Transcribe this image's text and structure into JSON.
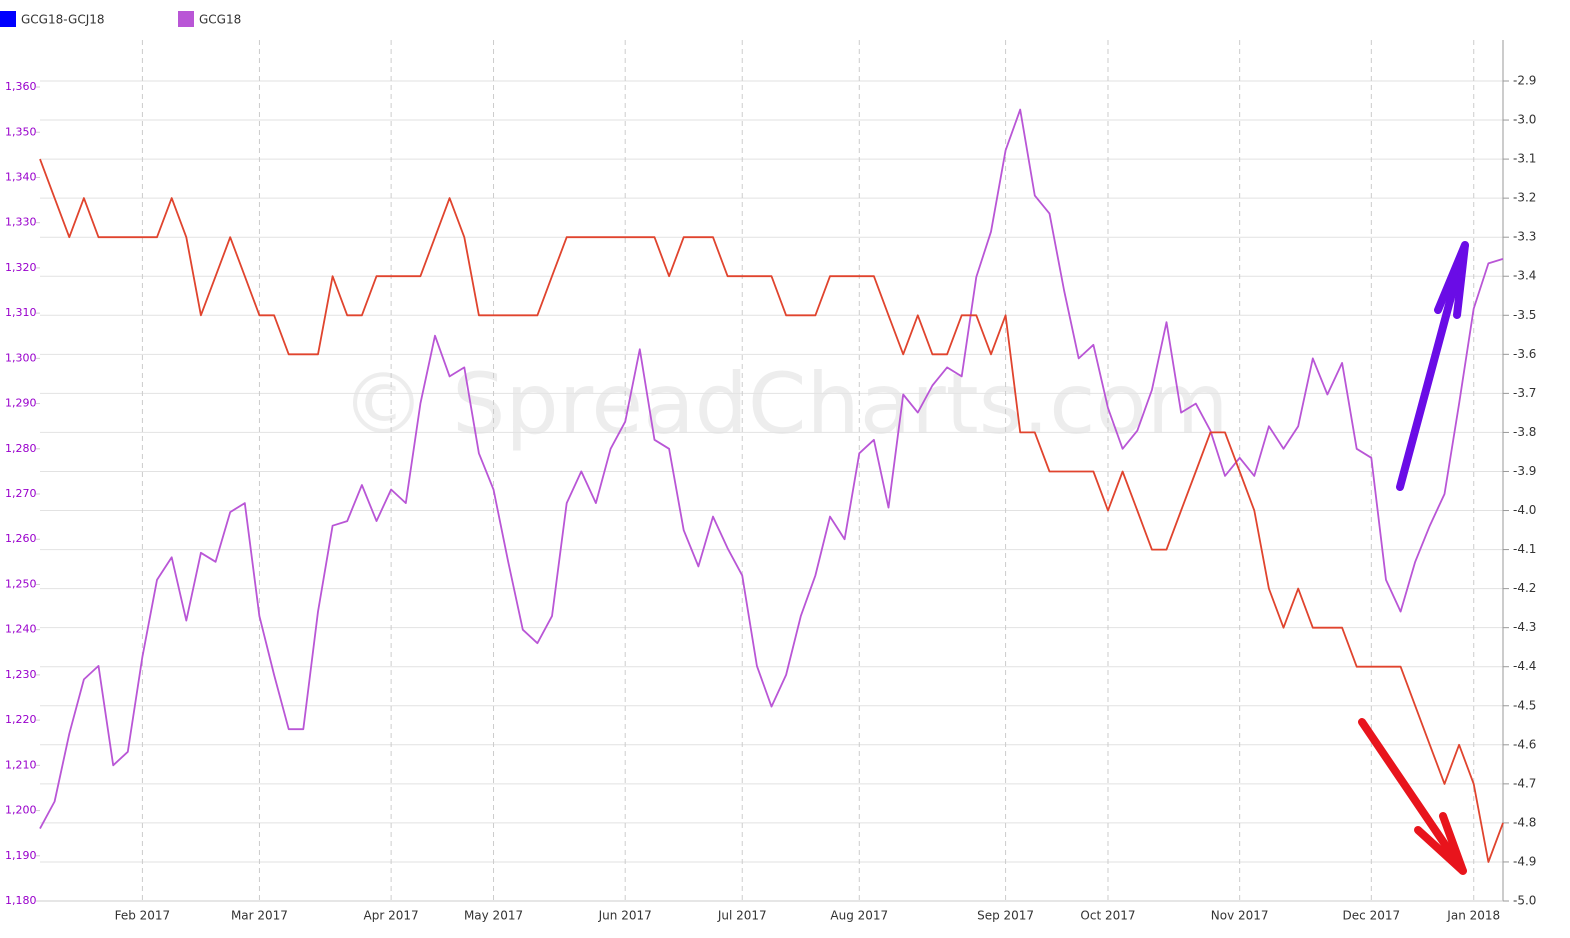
{
  "chart_data": {
    "type": "line",
    "watermark": "© SpreadCharts.com",
    "categories": [
      null,
      null,
      null,
      null,
      null,
      null,
      null,
      "Feb 2017",
      null,
      null,
      null,
      null,
      null,
      null,
      null,
      "Mar 2017",
      null,
      null,
      null,
      null,
      null,
      null,
      null,
      null,
      "Apr 2017",
      null,
      null,
      null,
      null,
      null,
      null,
      "May 2017",
      null,
      null,
      null,
      null,
      null,
      null,
      null,
      null,
      "Jun 2017",
      null,
      null,
      null,
      null,
      null,
      null,
      null,
      "Jul 2017",
      null,
      null,
      null,
      null,
      null,
      null,
      null,
      "Aug 2017",
      null,
      null,
      null,
      null,
      null,
      null,
      null,
      null,
      null,
      "Sep 2017",
      null,
      null,
      null,
      null,
      null,
      null,
      "Oct 2017",
      null,
      null,
      null,
      null,
      null,
      null,
      null,
      null,
      "Nov 2017",
      null,
      null,
      null,
      null,
      null,
      null,
      null,
      null,
      "Dec 2017",
      null,
      null,
      null,
      null,
      null,
      null,
      "Jan 2018",
      null,
      null
    ],
    "series": [
      {
        "name": "GCG18-GCJ18",
        "axis": "y2",
        "color": "#e0442e",
        "legend_color": "#0000ff",
        "values": [
          -3.1,
          -3.2,
          -3.3,
          -3.2,
          -3.3,
          -3.3,
          -3.3,
          -3.3,
          -3.3,
          -3.2,
          -3.3,
          -3.5,
          -3.4,
          -3.3,
          -3.4,
          -3.5,
          -3.5,
          -3.6,
          -3.6,
          -3.6,
          -3.4,
          -3.5,
          -3.5,
          -3.4,
          -3.4,
          -3.4,
          -3.4,
          -3.3,
          -3.2,
          -3.3,
          -3.5,
          -3.5,
          -3.5,
          -3.5,
          -3.5,
          -3.4,
          -3.3,
          -3.3,
          -3.3,
          -3.3,
          -3.3,
          -3.3,
          -3.3,
          -3.4,
          -3.3,
          -3.3,
          -3.3,
          -3.4,
          -3.4,
          -3.4,
          -3.4,
          -3.5,
          -3.5,
          -3.5,
          -3.4,
          -3.4,
          -3.4,
          -3.4,
          -3.5,
          -3.6,
          -3.5,
          -3.6,
          -3.6,
          -3.5,
          -3.5,
          -3.6,
          -3.5,
          -3.8,
          -3.8,
          -3.9,
          -3.9,
          -3.9,
          -3.9,
          -4.0,
          -3.9,
          -4.0,
          -4.1,
          -4.1,
          -4.0,
          -3.9,
          -3.8,
          -3.8,
          -3.9,
          -4.0,
          -4.2,
          -4.3,
          -4.2,
          -4.3,
          -4.3,
          -4.3,
          -4.4,
          -4.4,
          -4.4,
          -4.4,
          -4.5,
          -4.6,
          -4.7,
          -4.6,
          -4.7,
          -4.9,
          -4.8
        ]
      },
      {
        "name": "GCG18",
        "axis": "y",
        "color": "#b956d6",
        "values": [
          1196,
          1202,
          1217,
          1229,
          1232,
          1210,
          1213,
          1234,
          1251,
          1256,
          1242,
          1257,
          1255,
          1266,
          1268,
          1243,
          1230,
          1218,
          1218,
          1244,
          1263,
          1264,
          1272,
          1264,
          1271,
          1268,
          1290,
          1305,
          1296,
          1298,
          1279,
          1271,
          1255,
          1240,
          1237,
          1243,
          1268,
          1275,
          1268,
          1280,
          1286,
          1302,
          1282,
          1280,
          1262,
          1254,
          1265,
          1258,
          1252,
          1232,
          1223,
          1230,
          1243,
          1252,
          1265,
          1260,
          1279,
          1282,
          1267,
          1292,
          1288,
          1294,
          1298,
          1296,
          1318,
          1328,
          1346,
          1355,
          1336,
          1332,
          1315,
          1300,
          1303,
          1289,
          1280,
          1284,
          1293,
          1308,
          1288,
          1290,
          1284,
          1274,
          1278,
          1274,
          1285,
          1280,
          1285,
          1300,
          1292,
          1299,
          1280,
          1278,
          1251,
          1244,
          1255,
          1263,
          1270,
          1290,
          1311,
          1321,
          1322
        ]
      }
    ],
    "ylim": [
      1180,
      1370.4
    ],
    "yticks": [
      {
        "value": 1180,
        "label": "1,180"
      },
      {
        "value": 1190,
        "label": "1,190"
      },
      {
        "value": 1200,
        "label": "1,200"
      },
      {
        "value": 1210,
        "label": "1,210"
      },
      {
        "value": 1220,
        "label": "1,220"
      },
      {
        "value": 1230,
        "label": "1,230"
      },
      {
        "value": 1240,
        "label": "1,240"
      },
      {
        "value": 1250,
        "label": "1,250"
      },
      {
        "value": 1260,
        "label": "1,260"
      },
      {
        "value": 1270,
        "label": "1,270"
      },
      {
        "value": 1280,
        "label": "1,280"
      },
      {
        "value": 1290,
        "label": "1,290"
      },
      {
        "value": 1300,
        "label": "1,300"
      },
      {
        "value": 1310,
        "label": "1,310"
      },
      {
        "value": 1320,
        "label": "1,320"
      },
      {
        "value": 1330,
        "label": "1,330"
      },
      {
        "value": 1340,
        "label": "1,340"
      },
      {
        "value": 1350,
        "label": "1,350"
      },
      {
        "value": 1360,
        "label": "1,360"
      }
    ],
    "y2lim": [
      -5.0,
      -2.795
    ],
    "y2ticks": [
      {
        "value": -5,
        "label": "-5.0"
      },
      -4.9,
      -4.8,
      -4.7,
      -4.6,
      -4.5,
      -4.4,
      -4.3,
      -4.2,
      -4.1,
      {
        "value": -4,
        "label": "-4.0"
      },
      -3.9,
      -3.8,
      -3.7,
      -3.6,
      -3.5,
      -3.4,
      -3.3,
      -3.2,
      -3.1,
      {
        "value": -3,
        "label": "-3.0"
      },
      -2.9
    ],
    "grid": true
  }
}
